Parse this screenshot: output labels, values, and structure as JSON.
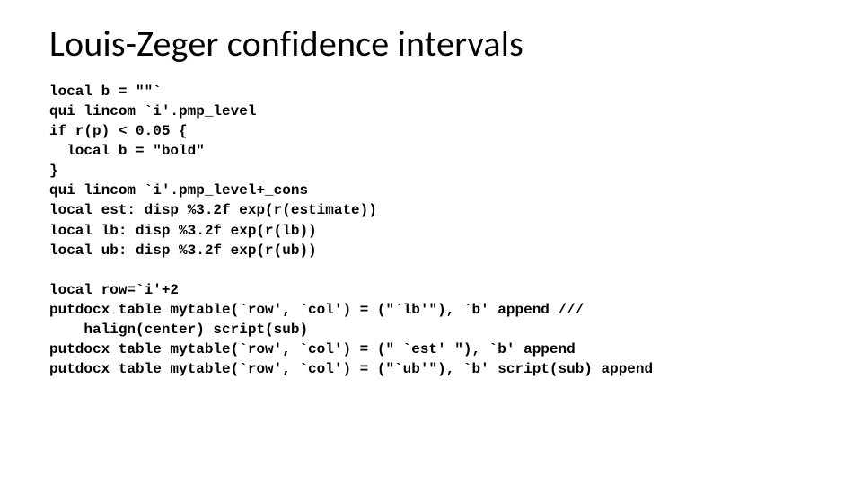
{
  "slide": {
    "title": "Louis-Zeger confidence intervals",
    "title_fontsize": 40,
    "title_color": "#000000",
    "background_color": "#ffffff",
    "code_font": "Consolas",
    "code_fontsize": 16,
    "code_color": "#000000",
    "code_lines": [
      "local b = \"\"`",
      "qui lincom `i'.pmp_level",
      "if r(p) < 0.05 {",
      "  local b = \"bold\"",
      "}",
      "qui lincom `i'.pmp_level+_cons",
      "local est: disp %3.2f exp(r(estimate))",
      "local lb: disp %3.2f exp(r(lb))",
      "local ub: disp %3.2f exp(r(ub))",
      "",
      "local row=`i'+2",
      "putdocx table mytable(`row', `col') = (\"`lb'\"), `b' append ///",
      "    halign(center) script(sub)",
      "putdocx table mytable(`row', `col') = (\" `est' \"), `b' append",
      "putdocx table mytable(`row', `col') = (\"`ub'\"), `b' script(sub) append"
    ]
  }
}
